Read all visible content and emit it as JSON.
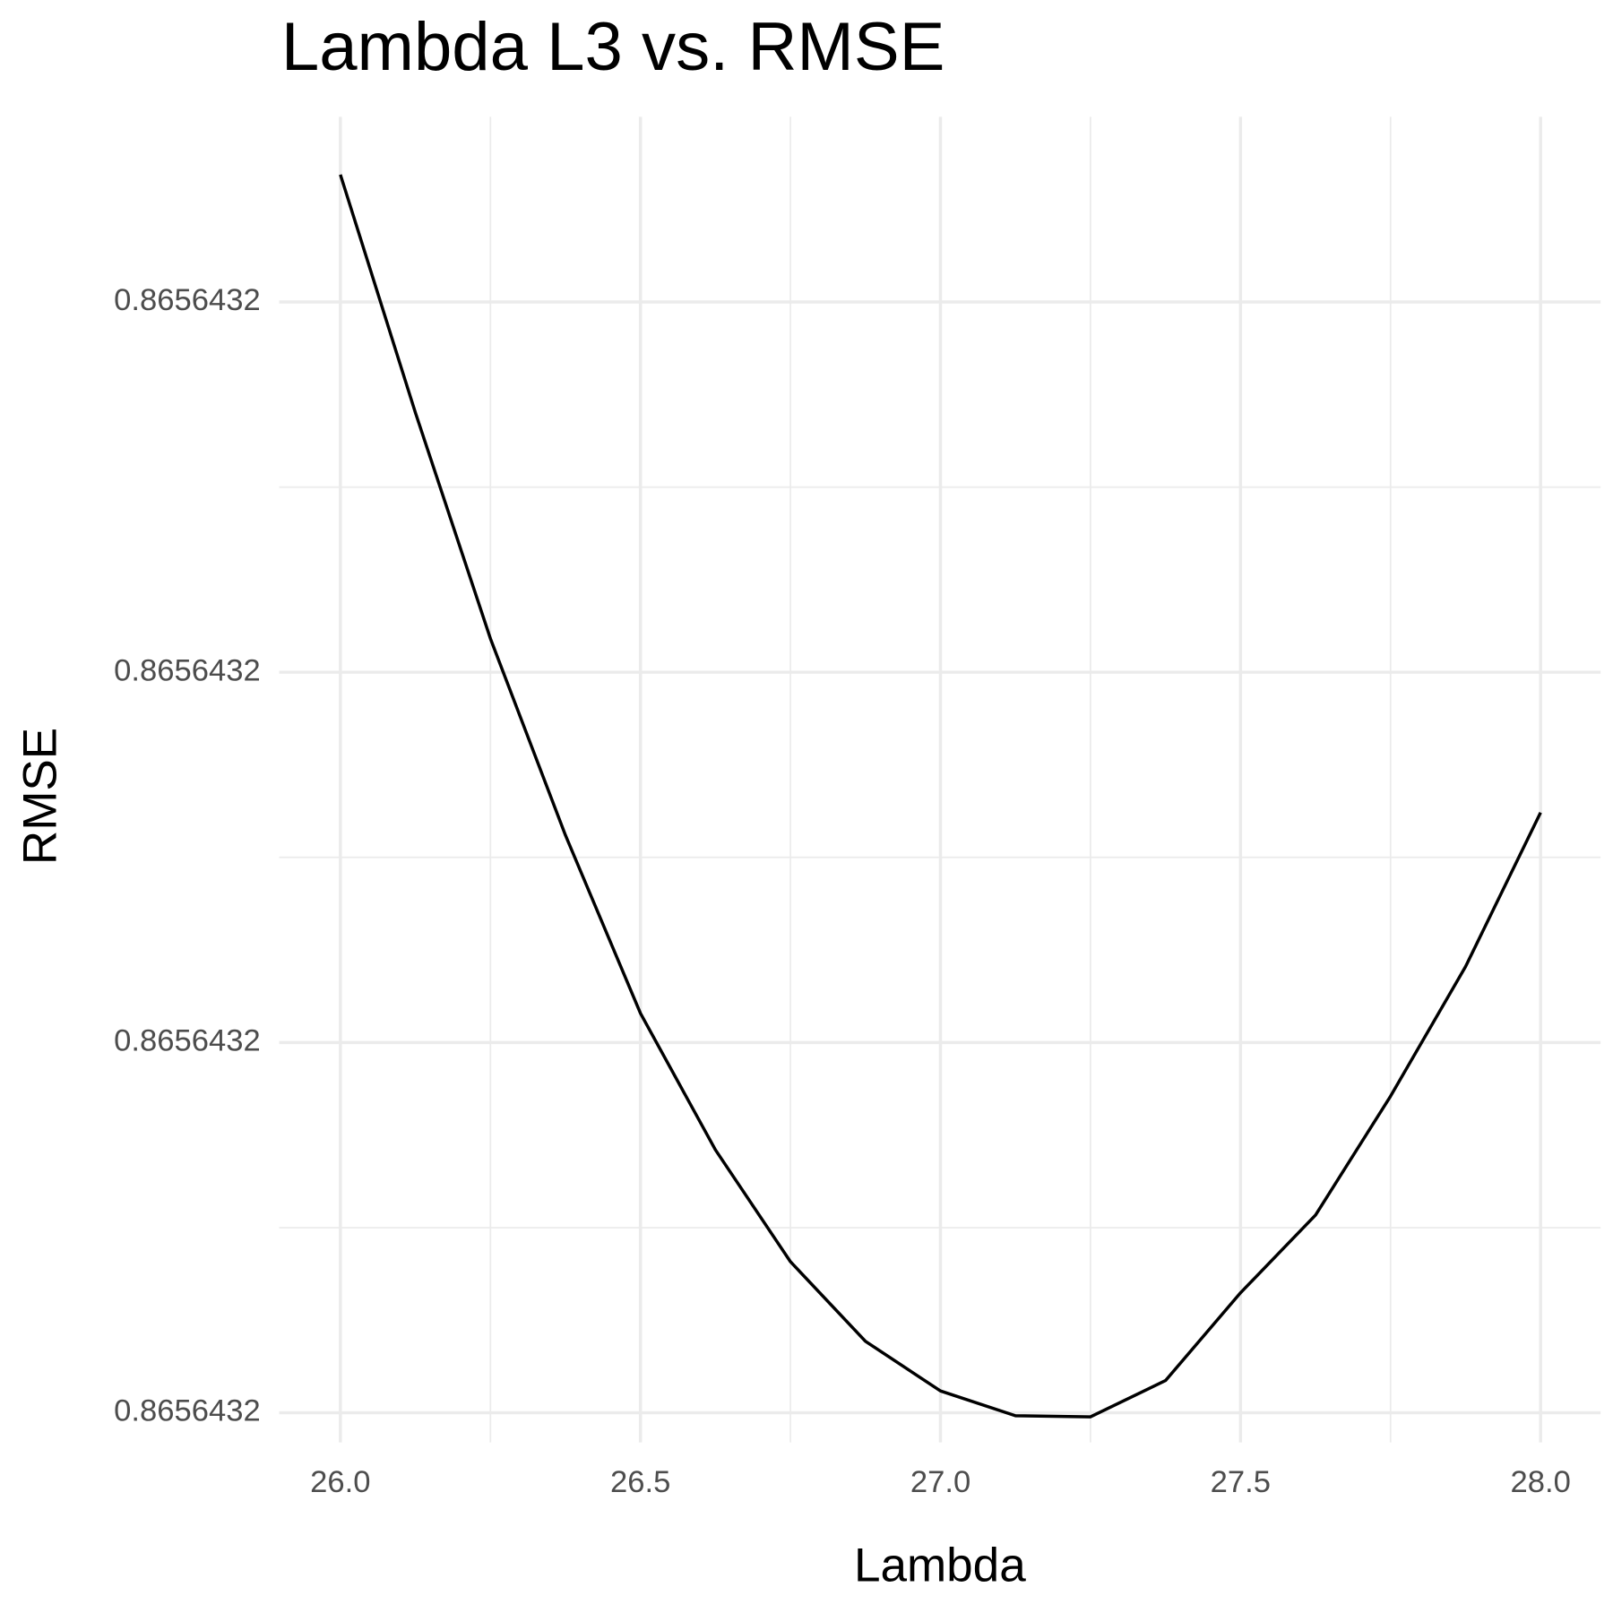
{
  "chart_data": {
    "type": "line",
    "title": "Lambda L3 vs. RMSE",
    "x_label": "Lambda",
    "y_label": "RMSE",
    "x": [
      26.0,
      26.125,
      26.25,
      26.375,
      26.5,
      26.625,
      26.75,
      26.875,
      27.0,
      27.125,
      27.25,
      27.375,
      27.5,
      27.625,
      27.75,
      27.875,
      28.0
    ],
    "series": [
      {
        "name": "RMSE",
        "color": "#000000",
        "values": [
          0.86564323344,
          0.86564322701,
          0.86564322091,
          0.8656432156,
          0.86564321079,
          0.8656432071,
          0.86564320408,
          0.86564320193,
          0.86564320059,
          0.86564319992,
          0.86564319989,
          0.86564320087,
          0.86564320324,
          0.86564320534,
          0.86564320855,
          0.86564321205,
          0.86564321621
        ]
      }
    ],
    "xlim": [
      25.898,
      28.1
    ],
    "xticks": [
      {
        "value": 26,
        "label": "26.0"
      },
      26.5,
      {
        "value": 27,
        "label": "27.0"
      },
      27.5,
      {
        "value": 28,
        "label": "28.0"
      }
    ],
    "ylim": [
      0.8656431992,
      0.865643235
    ],
    "yticks": [
      {
        "value": 0.8656432,
        "label": "0.8656432"
      },
      {
        "value": 0.86564321,
        "label": "0.8656432"
      },
      {
        "value": 0.86564322,
        "label": "0.8656432"
      },
      {
        "value": 0.86564323,
        "label": "0.8656432"
      }
    ],
    "grid": true
  }
}
